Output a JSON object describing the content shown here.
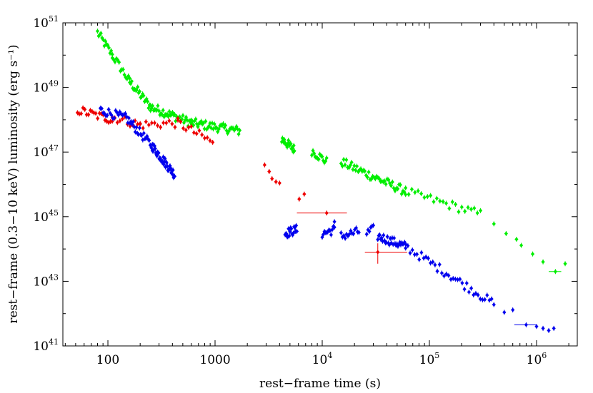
{
  "chart_data": {
    "type": "scatter",
    "title": "",
    "xlabel": "rest−frame time (s)",
    "ylabel": "rest−frame (0.3−10 keV) luminosity (erg s⁻¹)",
    "xscale": "log",
    "yscale": "log",
    "xlim": [
      38,
      2400000
    ],
    "ylim": [
      1e+41,
      1e+51
    ],
    "grid": false,
    "legend": "none",
    "x_ticks": [
      {
        "value": 100,
        "label": "100",
        "exp": ""
      },
      {
        "value": 1000,
        "label": "1000",
        "exp": ""
      },
      {
        "value": 10000,
        "label": "10",
        "exp": "4"
      },
      {
        "value": 100000,
        "label": "10",
        "exp": "5"
      },
      {
        "value": 1000000,
        "label": "10",
        "exp": "6"
      }
    ],
    "y_ticks": [
      {
        "value": 1e+41,
        "label": "10",
        "exp": "41"
      },
      {
        "value": 1e+43,
        "label": "10",
        "exp": "43"
      },
      {
        "value": 1e+45,
        "label": "10",
        "exp": "45"
      },
      {
        "value": 1e+47,
        "label": "10",
        "exp": "47"
      },
      {
        "value": 1e+49,
        "label": "10",
        "exp": "49"
      },
      {
        "value": 1e+51,
        "label": "10",
        "exp": "51"
      }
    ],
    "series": [
      {
        "color": "#00ee00",
        "segments": [
          {
            "x_from": 80,
            "x_to": 110,
            "y_from": 5e+50,
            "y_to": 1e+50,
            "n": 14
          },
          {
            "x_from": 110,
            "x_to": 160,
            "y_from": 1e+50,
            "y_to": 1.5e+49,
            "n": 14
          },
          {
            "x_from": 160,
            "x_to": 250,
            "y_from": 1.5e+49,
            "y_to": 2.5e+48,
            "n": 22
          },
          {
            "x_from": 250,
            "x_to": 600,
            "y_from": 2.5e+48,
            "y_to": 8e+47,
            "n": 40
          },
          {
            "x_from": 600,
            "x_to": 1700,
            "y_from": 8e+47,
            "y_to": 4.5e+47,
            "n": 45
          },
          {
            "x_from": 4200,
            "x_to": 5500,
            "y_from": 2.5e+47,
            "y_to": 1.2e+47,
            "n": 22
          },
          {
            "x_from": 8000,
            "x_to": 11000,
            "y_from": 1.1e+47,
            "y_to": 5e+46,
            "n": 14
          },
          {
            "x_from": 15000,
            "x_to": 60000,
            "y_from": 5e+46,
            "y_to": 6e+45,
            "n": 50
          },
          {
            "x_from": 60000,
            "x_to": 300000,
            "y_from": 6e+45,
            "y_to": 1.2e+45,
            "n": 25
          }
        ],
        "points": [
          {
            "x": 400000,
            "y": 6e+44
          },
          {
            "x": 520000,
            "y": 3e+44
          },
          {
            "x": 650000,
            "y": 2e+44
          },
          {
            "x": 720000,
            "y": 1.3e+44
          },
          {
            "x": 920000,
            "y": 7e+43
          },
          {
            "x": 1150000,
            "y": 4e+43
          },
          {
            "x": 1500000,
            "y": 2e+43,
            "xerr": [
              1300000,
              1700000
            ]
          },
          {
            "x": 1850000,
            "y": 3.5e+43
          }
        ]
      },
      {
        "color": "#ee0000",
        "segments": [
          {
            "x_from": 52,
            "x_to": 110,
            "y_from": 2e+48,
            "y_to": 1e+48,
            "n": 20
          },
          {
            "x_from": 110,
            "x_to": 200,
            "y_from": 1.2e+48,
            "y_to": 7e+47,
            "n": 12
          },
          {
            "x_from": 200,
            "x_to": 450,
            "y_from": 7e+47,
            "y_to": 8e+47,
            "n": 14
          },
          {
            "x_from": 450,
            "x_to": 950,
            "y_from": 8e+47,
            "y_to": 2e+47,
            "n": 14
          }
        ],
        "points": [
          {
            "x": 2900,
            "y": 4e+46
          },
          {
            "x": 3200,
            "y": 2.5e+46
          },
          {
            "x": 3400,
            "y": 1.5e+46
          },
          {
            "x": 3700,
            "y": 1.2e+46
          },
          {
            "x": 4000,
            "y": 1.1e+46
          },
          {
            "x": 6100,
            "y": 3.5e+45
          },
          {
            "x": 6800,
            "y": 5e+45
          },
          {
            "x": 11000,
            "y": 1.3e+45,
            "xerr": [
              5800,
              17000
            ]
          },
          {
            "x": 33000,
            "y": 8e+43,
            "xerr": [
              25000,
              62000
            ],
            "yerr": [
              3.5e+43,
              1.5e+44
            ]
          }
        ]
      },
      {
        "color": "#0000ee",
        "segments": [
          {
            "x_from": 85,
            "x_to": 150,
            "y_from": 2e+48,
            "y_to": 1.1e+48,
            "n": 20
          },
          {
            "x_from": 150,
            "x_to": 260,
            "y_from": 1.1e+48,
            "y_to": 1.5e+47,
            "n": 25
          },
          {
            "x_from": 260,
            "x_to": 420,
            "y_from": 1.5e+47,
            "y_to": 2e+46,
            "n": 40
          },
          {
            "x_from": 4500,
            "x_to": 5800,
            "y_from": 3e+44,
            "y_to": 4e+44,
            "n": 18
          },
          {
            "x_from": 10000,
            "x_to": 13000,
            "y_from": 3e+44,
            "y_to": 4e+44,
            "n": 12
          },
          {
            "x_from": 15000,
            "x_to": 22000,
            "y_from": 2.5e+44,
            "y_to": 3.5e+44,
            "n": 14
          },
          {
            "x_from": 26000,
            "x_to": 30000,
            "y_from": 3e+44,
            "y_to": 4e+44,
            "n": 6
          },
          {
            "x_from": 33000,
            "x_to": 60000,
            "y_from": 2.5e+44,
            "y_to": 1.2e+44,
            "n": 30
          },
          {
            "x_from": 60000,
            "x_to": 400000,
            "y_from": 1.2e+44,
            "y_to": 2e+42,
            "n": 40
          }
        ],
        "points": [
          {
            "x": 13000,
            "y": 7e+44
          },
          {
            "x": 500000,
            "y": 1.1e+42
          },
          {
            "x": 600000,
            "y": 1.3e+42
          },
          {
            "x": 800000,
            "y": 4.5e+41,
            "xerr": [
              620000,
              1000000
            ]
          },
          {
            "x": 1000000,
            "y": 4e+41
          },
          {
            "x": 1150000,
            "y": 3.5e+41
          },
          {
            "x": 1300000,
            "y": 3e+41
          },
          {
            "x": 1450000,
            "y": 3.5e+41
          }
        ]
      }
    ]
  }
}
